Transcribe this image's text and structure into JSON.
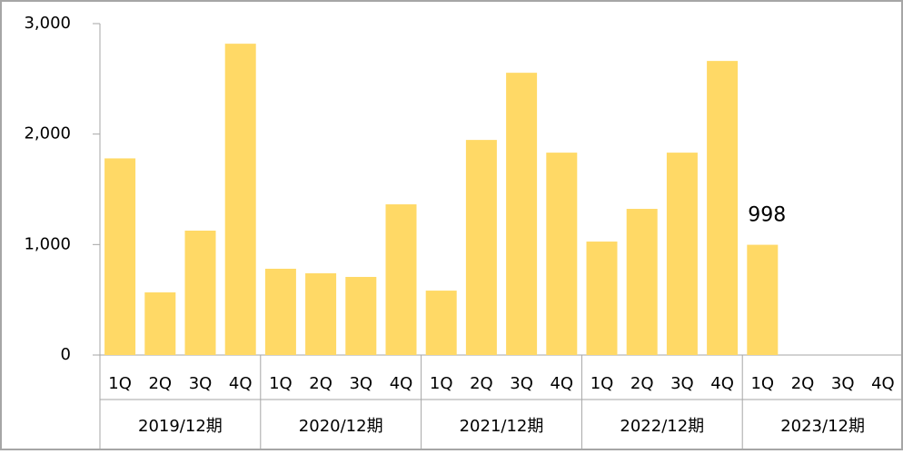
{
  "chart_data": {
    "type": "bar",
    "categories": [
      "1Q",
      "2Q",
      "3Q",
      "4Q",
      "1Q",
      "2Q",
      "3Q",
      "4Q",
      "1Q",
      "2Q",
      "3Q",
      "4Q",
      "1Q",
      "2Q",
      "3Q",
      "4Q",
      "1Q",
      "2Q",
      "3Q",
      "4Q"
    ],
    "groups": [
      "2019/12期",
      "2020/12期",
      "2021/12期",
      "2022/12期",
      "2023/12期"
    ],
    "values": [
      1780,
      567,
      1126,
      2818,
      781,
      740,
      707,
      1364,
      583,
      1947,
      2555,
      1832,
      1027,
      1323,
      1832,
      2662,
      998,
      null,
      null,
      null
    ],
    "value_labels": [
      null,
      null,
      null,
      null,
      null,
      null,
      null,
      null,
      null,
      null,
      null,
      null,
      null,
      null,
      null,
      null,
      "998",
      null,
      null,
      null
    ],
    "color": "#ffd966",
    "ylim": [
      0,
      3000
    ],
    "yticks": [
      0,
      {
        "value": 1000,
        "label": "1,000"
      },
      {
        "value": 2000,
        "label": "2,000"
      },
      {
        "value": 3000,
        "label": "3,000"
      }
    ],
    "grid": false
  }
}
